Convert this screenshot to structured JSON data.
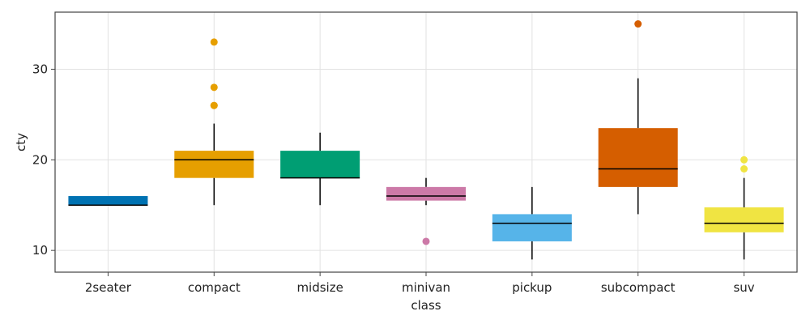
{
  "chart_data": {
    "type": "boxplot",
    "xlabel": "class",
    "ylabel": "cty",
    "ylim": [
      7.6,
      36.3
    ],
    "yticks": [
      10,
      20,
      30
    ],
    "grid": true,
    "categories": [
      "2seater",
      "compact",
      "midsize",
      "minivan",
      "pickup",
      "subcompact",
      "suv"
    ],
    "boxes": [
      {
        "category": "2seater",
        "color": "#0072B2",
        "min": 15,
        "q1": 15,
        "median": 15,
        "q3": 16,
        "max": 16,
        "outliers": []
      },
      {
        "category": "compact",
        "color": "#E69F00",
        "min": 15,
        "q1": 18,
        "median": 20,
        "q3": 21,
        "max": 24,
        "outliers": [
          26,
          26,
          28,
          33
        ]
      },
      {
        "category": "midsize",
        "color": "#009E73",
        "min": 15,
        "q1": 18,
        "median": 18,
        "q3": 21,
        "max": 23,
        "outliers": []
      },
      {
        "category": "minivan",
        "color": "#CC79A7",
        "min": 15,
        "q1": 15.5,
        "median": 16,
        "q3": 17,
        "max": 18,
        "outliers": [
          11
        ]
      },
      {
        "category": "pickup",
        "color": "#56B4E9",
        "min": 9,
        "q1": 11,
        "median": 13,
        "q3": 14,
        "max": 17,
        "outliers": []
      },
      {
        "category": "subcompact",
        "color": "#D55E00",
        "min": 14,
        "q1": 17,
        "median": 19,
        "q3": 23.5,
        "max": 29,
        "outliers": [
          35
        ]
      },
      {
        "category": "suv",
        "color": "#F0E442",
        "min": 9,
        "q1": 12,
        "median": 13,
        "q3": 14.75,
        "max": 18,
        "outliers": [
          19,
          20
        ]
      }
    ]
  }
}
